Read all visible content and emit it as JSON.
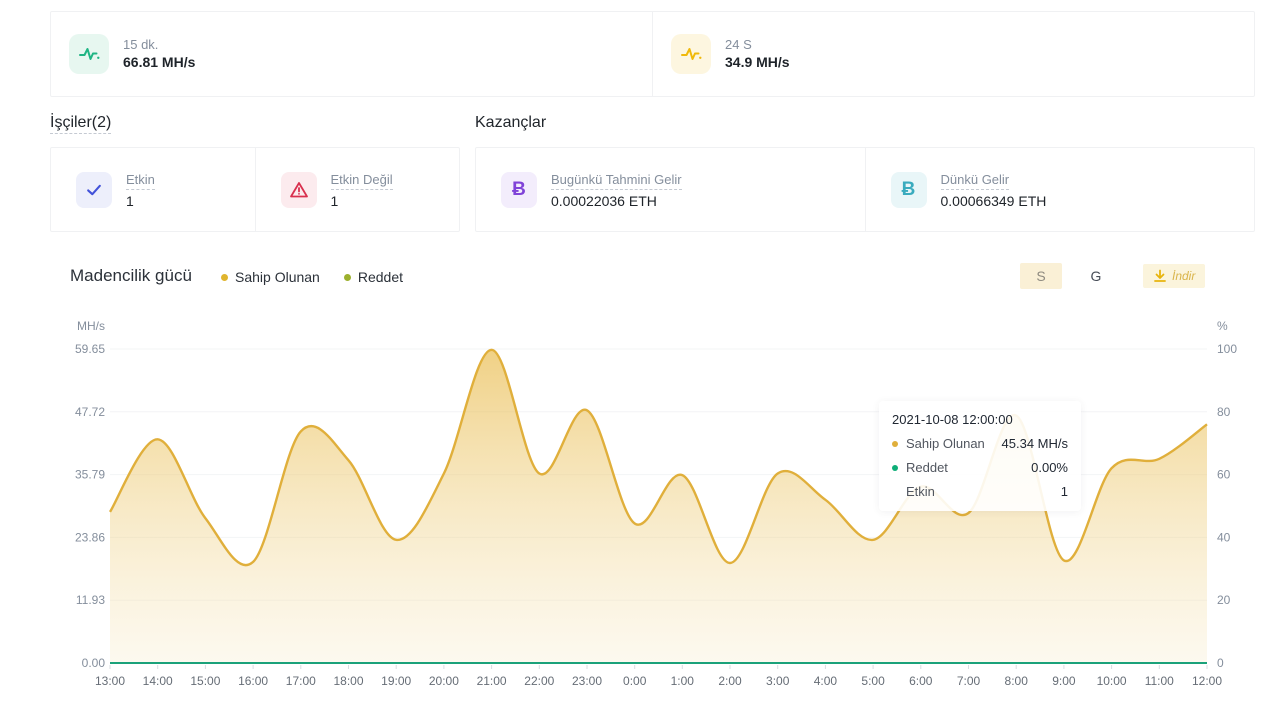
{
  "stats": {
    "items": [
      {
        "icon": "pulse-icon",
        "icon_color": "#1FB584",
        "icon_bg": "#E7F7F0",
        "label": "15 dk.",
        "value": "66.81 MH/s"
      },
      {
        "icon": "pulse-icon",
        "icon_color": "#F0B90B",
        "icon_bg": "#FDF6E0",
        "label": "24 S",
        "value": "34.9 MH/s"
      }
    ]
  },
  "workers": {
    "title": "İşçiler(2)",
    "items": [
      {
        "icon": "check-icon",
        "icon_color": "#4252D9",
        "icon_bg": "#EDEFFB",
        "label": "Etkin",
        "value": "1"
      },
      {
        "icon": "warning-icon",
        "icon_color": "#D9304E",
        "icon_bg": "#FCEBEE",
        "label": "Etkin Değil",
        "value": "1"
      }
    ]
  },
  "earnings": {
    "title": "Kazançlar",
    "items": [
      {
        "icon": "crypto-b-icon",
        "symbol": "Ƀ",
        "icon_color": "#8043D8",
        "icon_bg": "#F3EDFC",
        "label": "Bugünkü Tahmini Gelir",
        "value": "0.00022036 ETH"
      },
      {
        "icon": "crypto-b-icon",
        "symbol": "Ƀ",
        "icon_color": "#3AABBE",
        "icon_bg": "#E9F6F8",
        "label": "Dünkü Gelir",
        "value": "0.00066349 ETH"
      }
    ]
  },
  "chart": {
    "title": "Madencilik gücü",
    "legend": [
      {
        "label": "Sahip Olunan",
        "color": "#E0B52E"
      },
      {
        "label": "Reddet",
        "color": "#9CB02E"
      }
    ],
    "controls": {
      "hour_label": "S",
      "day_label": "G",
      "download_label": "İndir",
      "accent": "#F0B90B"
    },
    "tooltip": {
      "title": "2021-10-08 12:00:00",
      "rows": [
        {
          "label": "Sahip Olunan",
          "value": "45.34 MH/s",
          "color": "#E0AF3B"
        },
        {
          "label": "Reddet",
          "value": "0.00%",
          "color": "#0DAE77"
        },
        {
          "label": "Etkin",
          "value": "1",
          "color": ""
        }
      ]
    }
  },
  "chart_data": {
    "type": "area",
    "title": "Madencilik gücü",
    "x": [
      "13:00",
      "14:00",
      "15:00",
      "16:00",
      "17:00",
      "18:00",
      "19:00",
      "20:00",
      "21:00",
      "22:00",
      "23:00",
      "0:00",
      "1:00",
      "2:00",
      "3:00",
      "4:00",
      "5:00",
      "6:00",
      "7:00",
      "8:00",
      "9:00",
      "10:00",
      "11:00",
      "12:00"
    ],
    "series": [
      {
        "name": "Sahip Olunan",
        "axis": "left",
        "unit": "MH/s",
        "line_color": "#E0AF3B",
        "values": [
          28.7,
          42.5,
          27.5,
          19.2,
          44.0,
          38.5,
          23.4,
          36.0,
          59.5,
          36.0,
          48.0,
          26.5,
          35.7,
          19.0,
          36.0,
          31.0,
          23.4,
          33.5,
          28.5,
          47.0,
          19.5,
          37.0,
          38.8,
          45.34
        ]
      },
      {
        "name": "Reddet",
        "axis": "right",
        "unit": "%",
        "line_color": "#1BA27A",
        "values": [
          0,
          0,
          0,
          0,
          0,
          0,
          0,
          0,
          0,
          0,
          0,
          0,
          0,
          0,
          0,
          0,
          0,
          0,
          0,
          0,
          0,
          0,
          0,
          0
        ]
      }
    ],
    "left_axis": {
      "label": "MH/s",
      "tick_labels": [
        "0.00",
        "11.93",
        "23.86",
        "35.79",
        "47.72",
        "59.65"
      ],
      "max": 59.65
    },
    "right_axis": {
      "label": "%",
      "tick_labels": [
        "0",
        "20",
        "40",
        "60",
        "80",
        "100"
      ],
      "max": 100
    },
    "grid": true,
    "legend_position": "top",
    "fill_gradient": [
      "rgba(230,178,52,0.60)",
      "rgba(247,235,202,0.30)"
    ]
  }
}
